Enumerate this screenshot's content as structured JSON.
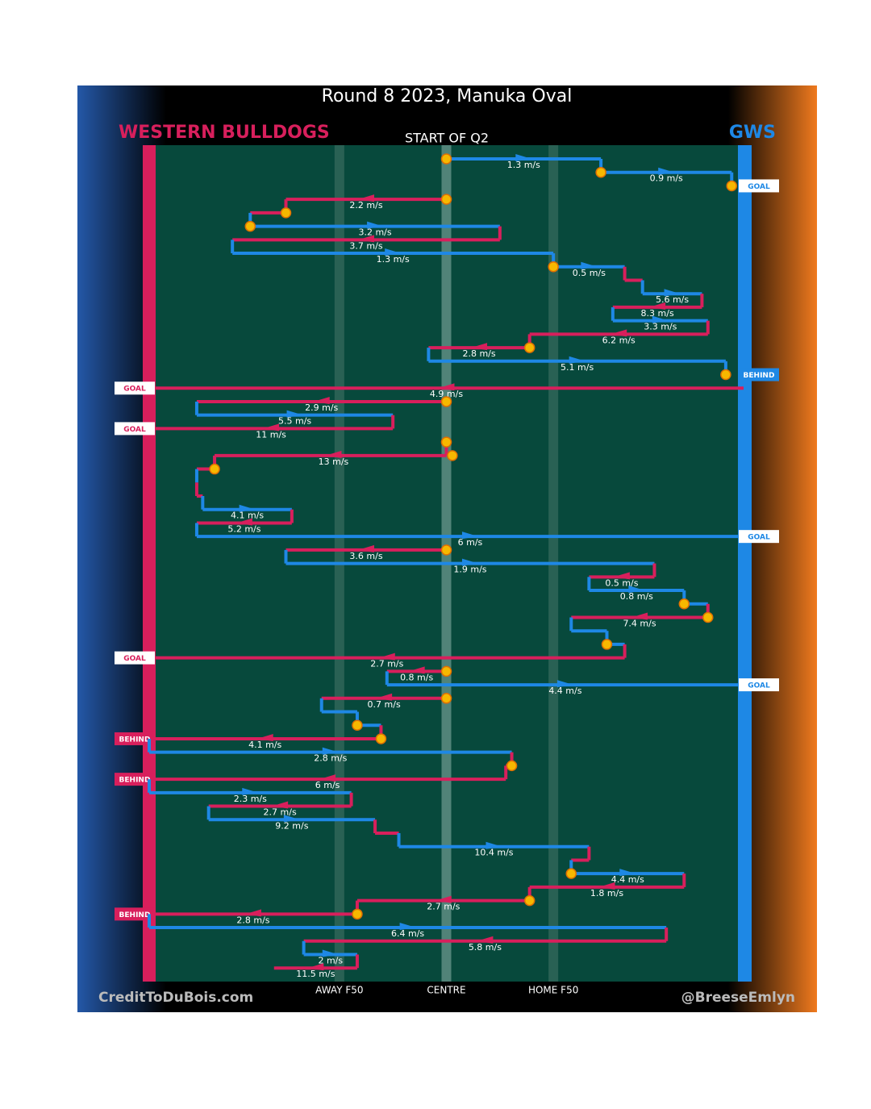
{
  "chart_data": {
    "type": "chain",
    "title": "Round 8 2023, Manuka Oval",
    "subtitle": "START OF Q2",
    "credit_left": "CreditToDuBois.com",
    "credit_right": "@BreeseEmlyn",
    "teams": [
      {
        "name": "WESTERN BULLDOGS",
        "color": "#d81f5c"
      },
      {
        "name": "GWS",
        "color": "#1e88e5"
      }
    ],
    "xlim": [
      0,
      100
    ],
    "xticks": [
      {
        "value": 32,
        "label": "AWAY F50"
      },
      {
        "value": 50,
        "label": "CENTRE"
      },
      {
        "value": 68,
        "label": "HOME F50"
      }
    ],
    "moves": [
      {
        "team": 1,
        "from": 50,
        "to": 76,
        "label": "1.3 m/s",
        "marker": true
      },
      {
        "team": 1,
        "from": 76,
        "to": 98,
        "label": "0.9 m/s",
        "marker": true
      },
      {
        "team": 1,
        "from": 98,
        "to": 98,
        "marker": true,
        "result": "GOAL"
      },
      {
        "team": 0,
        "from": 50,
        "to": 23,
        "label": "2.2 m/s",
        "marker": true
      },
      {
        "team": 0,
        "from": 23,
        "to": 17,
        "marker": true
      },
      {
        "team": 1,
        "from": 17,
        "to": 59,
        "label": "3.2 m/s",
        "marker": true
      },
      {
        "team": 0,
        "from": 59,
        "to": 14,
        "label": "3.7 m/s"
      },
      {
        "team": 1,
        "from": 14,
        "to": 68,
        "label": "1.3 m/s"
      },
      {
        "team": 1,
        "from": 68,
        "to": 80,
        "label": "0.5 m/s",
        "marker": true
      },
      {
        "team": 0,
        "from": 80,
        "to": 83
      },
      {
        "team": 1,
        "from": 83,
        "to": 93,
        "label": "5.6 m/s"
      },
      {
        "team": 0,
        "from": 93,
        "to": 78,
        "label": "8.3 m/s"
      },
      {
        "team": 1,
        "from": 78,
        "to": 94,
        "label": "3.3 m/s"
      },
      {
        "team": 0,
        "from": 94,
        "to": 64,
        "label": "6.2 m/s"
      },
      {
        "team": 0,
        "from": 64,
        "to": 47,
        "label": "2.8 m/s",
        "marker": true
      },
      {
        "team": 1,
        "from": 47,
        "to": 97,
        "label": "5.1 m/s"
      },
      {
        "team": 1,
        "from": 97,
        "to": 97,
        "marker": true,
        "result": "BEHIND"
      },
      {
        "team": 0,
        "from": 100,
        "to": 0,
        "label": "4.9 m/s",
        "result": "GOAL"
      },
      {
        "team": 0,
        "from": 50,
        "to": 8,
        "label": "2.9 m/s",
        "marker": true
      },
      {
        "team": 1,
        "from": 8,
        "to": 41,
        "label": "5.5 m/s"
      },
      {
        "team": 0,
        "from": 41,
        "to": 0,
        "label": "11 m/s",
        "result": "GOAL"
      },
      {
        "team": 0,
        "from": 50,
        "to": 50,
        "marker": true
      },
      {
        "team": 0,
        "from": 51,
        "to": 11,
        "label": "13 m/s",
        "marker": true
      },
      {
        "team": 0,
        "from": 11,
        "to": 8,
        "marker": true
      },
      {
        "team": 1,
        "from": 8,
        "to": 8
      },
      {
        "team": 0,
        "from": 8,
        "to": 9
      },
      {
        "team": 1,
        "from": 9,
        "to": 24,
        "label": "4.1 m/s"
      },
      {
        "team": 0,
        "from": 24,
        "to": 8,
        "label": "5.2 m/s"
      },
      {
        "team": 1,
        "from": 8,
        "to": 100,
        "label": "6 m/s",
        "result": "GOAL"
      },
      {
        "team": 0,
        "from": 50,
        "to": 23,
        "label": "3.6 m/s",
        "marker": true
      },
      {
        "team": 1,
        "from": 23,
        "to": 85,
        "label": "1.9 m/s"
      },
      {
        "team": 0,
        "from": 85,
        "to": 74,
        "label": "0.5 m/s"
      },
      {
        "team": 1,
        "from": 74,
        "to": 90,
        "label": "0.8 m/s"
      },
      {
        "team": 1,
        "from": 90,
        "to": 94,
        "marker": true
      },
      {
        "team": 0,
        "from": 94,
        "to": 71,
        "label": "7.4 m/s",
        "marker": true
      },
      {
        "team": 1,
        "from": 71,
        "to": 77
      },
      {
        "team": 1,
        "from": 77,
        "to": 80,
        "marker": true
      },
      {
        "team": 0,
        "from": 80,
        "to": 0,
        "label": "2.7 m/s",
        "result": "GOAL"
      },
      {
        "team": 0,
        "from": 50,
        "to": 40,
        "label": "0.8 m/s",
        "marker": true
      },
      {
        "team": 1,
        "from": 40,
        "to": 100,
        "label": "4.4 m/s",
        "result": "GOAL"
      },
      {
        "team": 0,
        "from": 50,
        "to": 29,
        "label": "0.7 m/s",
        "marker": true
      },
      {
        "team": 1,
        "from": 29,
        "to": 35
      },
      {
        "team": 1,
        "from": 35,
        "to": 39,
        "marker": true
      },
      {
        "team": 0,
        "from": 39,
        "to": 0,
        "label": "4.1 m/s",
        "marker": true,
        "result": "BEHIND"
      },
      {
        "team": 1,
        "from": 0,
        "to": 61,
        "label": "2.8 m/s"
      },
      {
        "team": 0,
        "from": 61,
        "to": 60,
        "marker": true
      },
      {
        "team": 0,
        "from": 60,
        "to": 0,
        "label": "6 m/s",
        "result": "BEHIND"
      },
      {
        "team": 1,
        "from": 0,
        "to": 34,
        "label": "2.3 m/s"
      },
      {
        "team": 0,
        "from": 34,
        "to": 10,
        "label": "2.7 m/s"
      },
      {
        "team": 1,
        "from": 10,
        "to": 38,
        "label": "9.2 m/s"
      },
      {
        "team": 0,
        "from": 38,
        "to": 42
      },
      {
        "team": 1,
        "from": 42,
        "to": 74,
        "label": "10.4 m/s"
      },
      {
        "team": 0,
        "from": 74,
        "to": 71
      },
      {
        "team": 1,
        "from": 71,
        "to": 90,
        "label": "4.4 m/s",
        "marker": true
      },
      {
        "team": 0,
        "from": 90,
        "to": 64,
        "label": "1.8 m/s"
      },
      {
        "team": 0,
        "from": 64,
        "to": 35,
        "label": "2.7 m/s",
        "marker": true
      },
      {
        "team": 0,
        "from": 35,
        "to": 0,
        "label": "2.8 m/s",
        "marker": true,
        "result": "BEHIND"
      },
      {
        "team": 1,
        "from": 0,
        "to": 87,
        "label": "6.4 m/s"
      },
      {
        "team": 0,
        "from": 87,
        "to": 26,
        "label": "5.8 m/s"
      },
      {
        "team": 1,
        "from": 26,
        "to": 35,
        "label": "2 m/s"
      },
      {
        "team": 0,
        "from": 35,
        "to": 21,
        "label": "11.5 m/s"
      }
    ]
  }
}
